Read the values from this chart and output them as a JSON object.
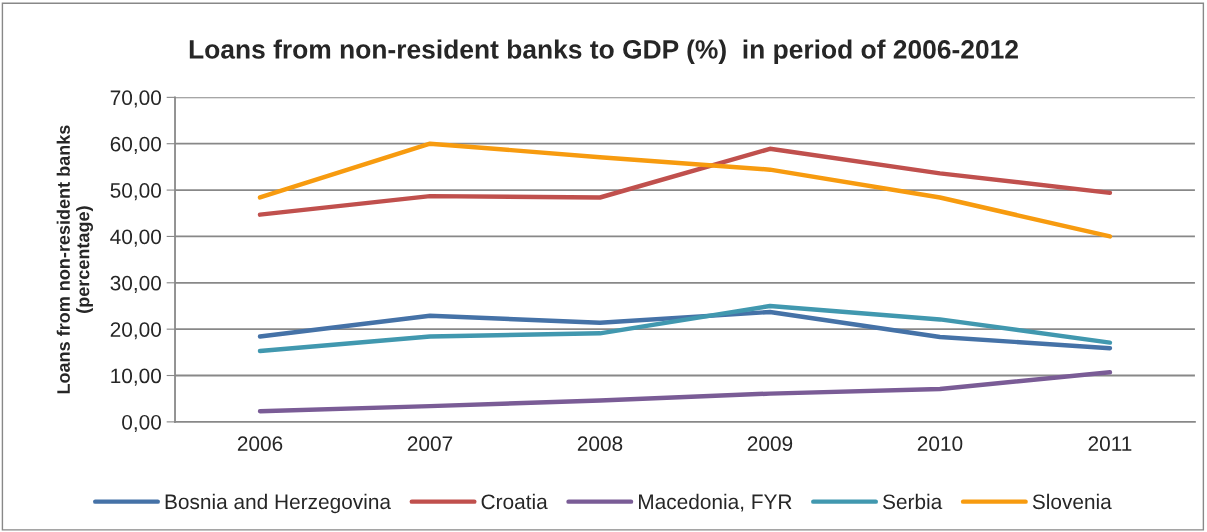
{
  "chart_data": {
    "type": "line",
    "title": "Loans from non-resident banks to GDP (%)  in period of 2006-2012",
    "ylabel": "Loans from non-resident banks\n(percentage)",
    "categories": [
      "2006",
      "2007",
      "2008",
      "2009",
      "2010",
      "2011"
    ],
    "series": [
      {
        "name": "Bosnia and Herzegovina",
        "color": "#4572a7",
        "values": [
          18.4,
          22.9,
          21.4,
          23.7,
          18.3,
          15.9
        ]
      },
      {
        "name": "Croatia",
        "color": "#c0504d",
        "values": [
          44.7,
          48.7,
          48.4,
          58.9,
          53.6,
          49.4
        ]
      },
      {
        "name": "Macedonia, FYR",
        "color": "#7a5c96",
        "values": [
          2.3,
          3.4,
          4.6,
          6.1,
          7.1,
          10.7
        ]
      },
      {
        "name": "Serbia",
        "color": "#4198af",
        "values": [
          15.3,
          18.4,
          19.1,
          25.0,
          22.1,
          17.1
        ]
      },
      {
        "name": "Slovenia",
        "color": "#f79b0f",
        "values": [
          48.4,
          60.0,
          57.1,
          54.4,
          48.4,
          40.0
        ]
      }
    ],
    "ylim": [
      0,
      70
    ],
    "yticks": [
      {
        "value": 0,
        "label": "0,00"
      },
      {
        "value": 10,
        "label": "10,00"
      },
      {
        "value": 20,
        "label": "20,00"
      },
      {
        "value": 30,
        "label": "30,00"
      },
      {
        "value": 40,
        "label": "40,00"
      },
      {
        "value": 50,
        "label": "50,00"
      },
      {
        "value": 60,
        "label": "60,00"
      },
      {
        "value": 70,
        "label": "70,00"
      }
    ],
    "grid": "y",
    "legend": "bottom",
    "marker": "none",
    "line_style": "solid"
  }
}
